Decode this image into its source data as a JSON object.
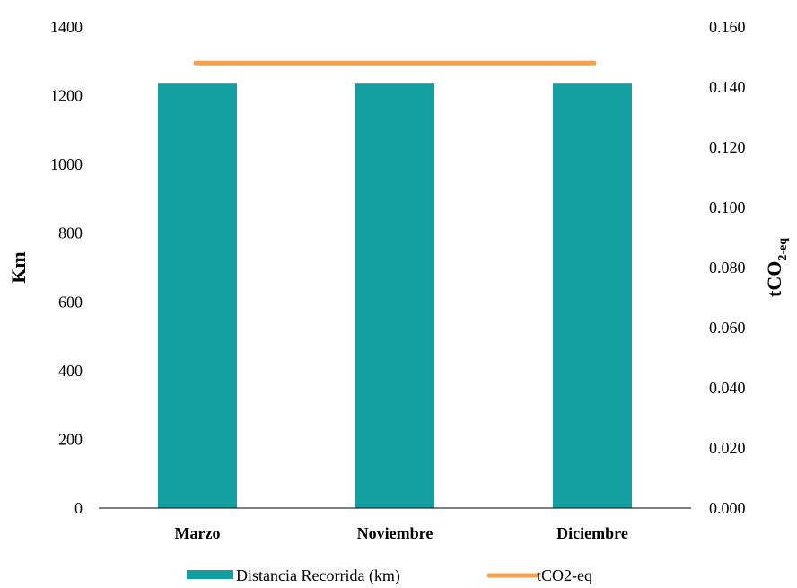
{
  "chart_data": {
    "type": "bar",
    "categories": [
      "Marzo",
      "Noviembre",
      "Diciembre"
    ],
    "series": [
      {
        "name": "Distancia Recorrida (km)",
        "type": "bar",
        "axis": "left",
        "values": [
          1235,
          1235,
          1235
        ],
        "color": "#14a0a3"
      },
      {
        "name": "tCO2-eq",
        "type": "line",
        "axis": "right",
        "values": [
          0.148,
          0.148,
          0.148
        ],
        "color": "#f5a04a"
      }
    ],
    "ylabel": "Km",
    "y2label_main": "tCO",
    "y2label_sub": "2-eq",
    "ylim": [
      0,
      1400
    ],
    "y2lim": [
      0,
      0.16
    ],
    "yticks": [
      "0",
      "200",
      "400",
      "600",
      "800",
      "1000",
      "1200",
      "1400"
    ],
    "y2ticks": [
      "0.000",
      "0.020",
      "0.040",
      "0.060",
      "0.080",
      "0.100",
      "0.120",
      "0.140",
      "0.160"
    ],
    "grid": false,
    "legend_position": "bottom"
  }
}
